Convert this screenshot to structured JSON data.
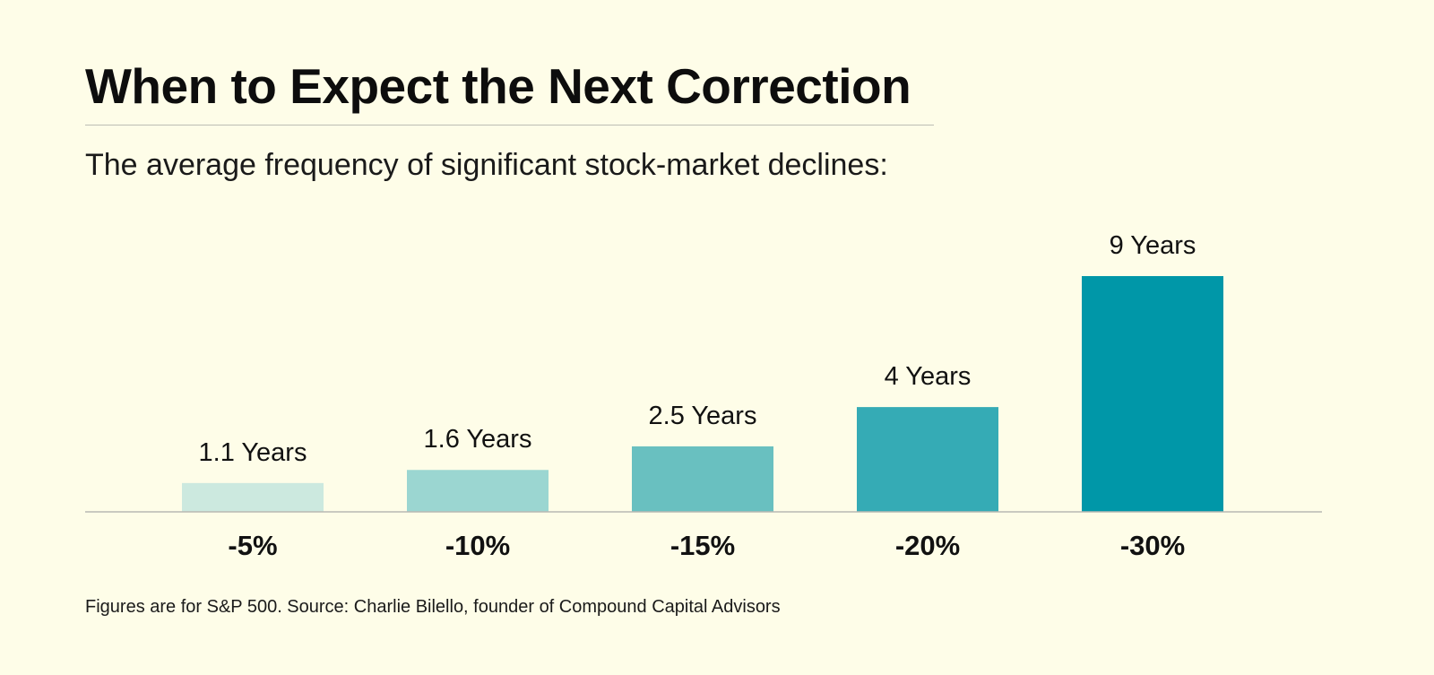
{
  "header": {
    "title": "When to Expect the Next Correction",
    "subtitle": "The average frequency of significant stock-market declines:"
  },
  "footer": {
    "note": "Figures are for S&P 500. Source: Charlie Bilello, founder of Compound Capital Advisors"
  },
  "chart_data": {
    "type": "bar",
    "title": "When to Expect the Next Correction",
    "subtitle": "The average frequency of significant stock-market declines:",
    "categories": [
      "-5%",
      "-10%",
      "-15%",
      "-20%",
      "-30%"
    ],
    "values": [
      1.1,
      1.6,
      2.5,
      4,
      9
    ],
    "data_labels": [
      "1.1 Years",
      "1.6 Years",
      "2.5 Years",
      "4 Years",
      "9 Years"
    ],
    "xlabel": "",
    "ylabel": "",
    "ylim": [
      0,
      9
    ],
    "grid": false,
    "legend": "none",
    "colors": [
      "#cce9df",
      "#9bd6d1",
      "#69c0c0",
      "#35abb5",
      "#0097a8"
    ],
    "baseline_color": "#b9b9b2"
  }
}
